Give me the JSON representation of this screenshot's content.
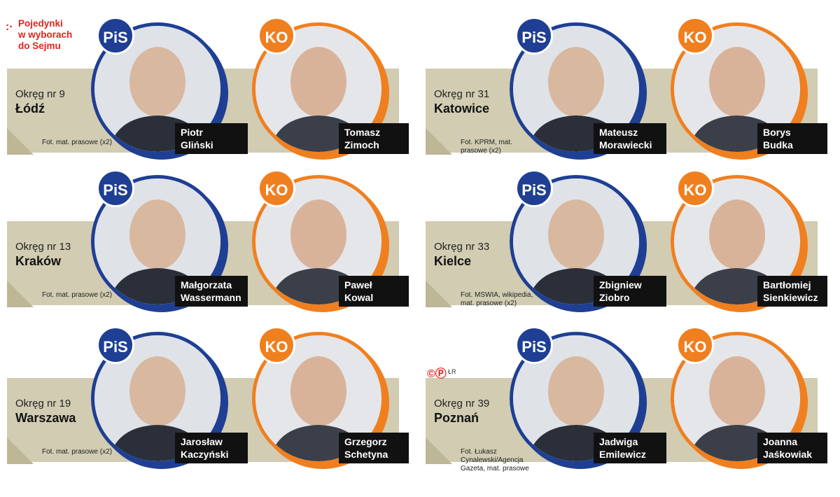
{
  "header": {
    "dots": ":·",
    "title_lines": [
      "Pojedynki",
      "w wyborach",
      "do Sejmu"
    ]
  },
  "colors": {
    "pis": "#1e3f93",
    "ko": "#f07f1f",
    "band": "#d1ccb2",
    "header_red": "#e2231a"
  },
  "logo": {
    "mark": "©Ⓟ",
    "initials": "ŁR"
  },
  "panels": [
    {
      "district_label": "Okręg nr 9",
      "city": "Łódź",
      "credit": "Fot. mat. prasowe (x2)",
      "pis": {
        "party": "PiS",
        "first": "Piotr",
        "last": "Gliński"
      },
      "ko": {
        "party": "KO",
        "first": "Tomasz",
        "last": "Zimoch"
      }
    },
    {
      "district_label": "Okręg nr 31",
      "city": "Katowice",
      "credit": "Fot. KPRM, mat. prasowe (x2)",
      "pis": {
        "party": "PiS",
        "first": "Mateusz",
        "last": "Morawiecki"
      },
      "ko": {
        "party": "KO",
        "first": "Borys",
        "last": "Budka"
      }
    },
    {
      "district_label": "Okręg nr 13",
      "city": "Kraków",
      "credit": "Fot. mat. prasowe (x2)",
      "pis": {
        "party": "PiS",
        "first": "Małgorzata",
        "last": "Wassermann"
      },
      "ko": {
        "party": "KO",
        "first": "Paweł",
        "last": "Kowal"
      }
    },
    {
      "district_label": "Okręg nr 33",
      "city": "Kielce",
      "credit": "Fot. MSWIA, wikipedia, mat. prasowe (x2)",
      "pis": {
        "party": "PiS",
        "first": "Zbigniew",
        "last": "Ziobro"
      },
      "ko": {
        "party": "KO",
        "first": "Bartłomiej",
        "last": "Sienkiewicz"
      }
    },
    {
      "district_label": "Okręg nr 19",
      "city": "Warszawa",
      "credit": "Fot. mat. prasowe (x2)",
      "pis": {
        "party": "PiS",
        "first": "Jarosław",
        "last": "Kaczyński"
      },
      "ko": {
        "party": "KO",
        "first": "Grzegorz",
        "last": "Schetyna"
      }
    },
    {
      "district_label": "Okręg nr 39",
      "city": "Poznań",
      "credit": "Fot. Łukasz Cynalewski/Agencja Gazeta, mat. prasowe",
      "pis": {
        "party": "PiS",
        "first": "Jadwiga",
        "last": "Emilewicz"
      },
      "ko": {
        "party": "KO",
        "first": "Joanna",
        "last": "Jaśkowiak"
      }
    }
  ]
}
